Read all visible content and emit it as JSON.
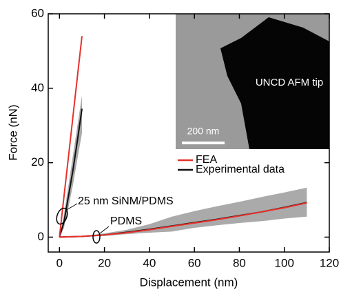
{
  "chart_data": {
    "type": "line",
    "xlabel": "Displacement (nm)",
    "ylabel": "Force (nN)",
    "xlim": [
      -5,
      120
    ],
    "ylim": [
      -4,
      60
    ],
    "xticks": [
      0,
      20,
      40,
      60,
      80,
      100,
      120
    ],
    "yticks": [
      0,
      20,
      40,
      60
    ],
    "groups": [
      {
        "label": "25 nm SiNM/PDMS",
        "x": [
          0,
          2,
          4,
          6,
          8,
          10
        ],
        "fea": [
          0,
          10.8,
          21.6,
          32.4,
          43.2,
          54
        ],
        "experimental": [
          0,
          4,
          11,
          18,
          26,
          34.5
        ],
        "band_upper": [
          0,
          6,
          14,
          22,
          30,
          38
        ],
        "band_lower": [
          0,
          2.5,
          8,
          14,
          21,
          28
        ]
      },
      {
        "label": "PDMS",
        "x": [
          0,
          10,
          20,
          30,
          40,
          50,
          60,
          70,
          80,
          90,
          100,
          110
        ],
        "fea": [
          0,
          0.2,
          0.6,
          1.2,
          2.0,
          2.9,
          3.8,
          4.7,
          5.7,
          6.8,
          7.9,
          9.2
        ],
        "experimental": [
          0,
          0.2,
          0.6,
          1.3,
          2.1,
          3.0,
          3.9,
          4.8,
          5.8,
          6.8,
          8.0,
          9.3
        ],
        "band_upper": [
          0,
          0.3,
          1,
          2,
          3.5,
          5.5,
          7,
          8.3,
          9.5,
          10.8,
          12,
          13.3
        ],
        "band_lower": [
          0,
          0.1,
          0.3,
          0.8,
          1.2,
          1.5,
          2.5,
          3.2,
          3.8,
          4.3,
          5,
          5.5
        ]
      }
    ],
    "series": [
      {
        "name": "FEA",
        "color": "#e8302a"
      },
      {
        "name": "Experimental data",
        "color": "#111111"
      }
    ],
    "band_color": "#aaaaaa",
    "inset": {
      "label": "UNCD AFM tip",
      "scale_bar": "200 nm"
    }
  }
}
